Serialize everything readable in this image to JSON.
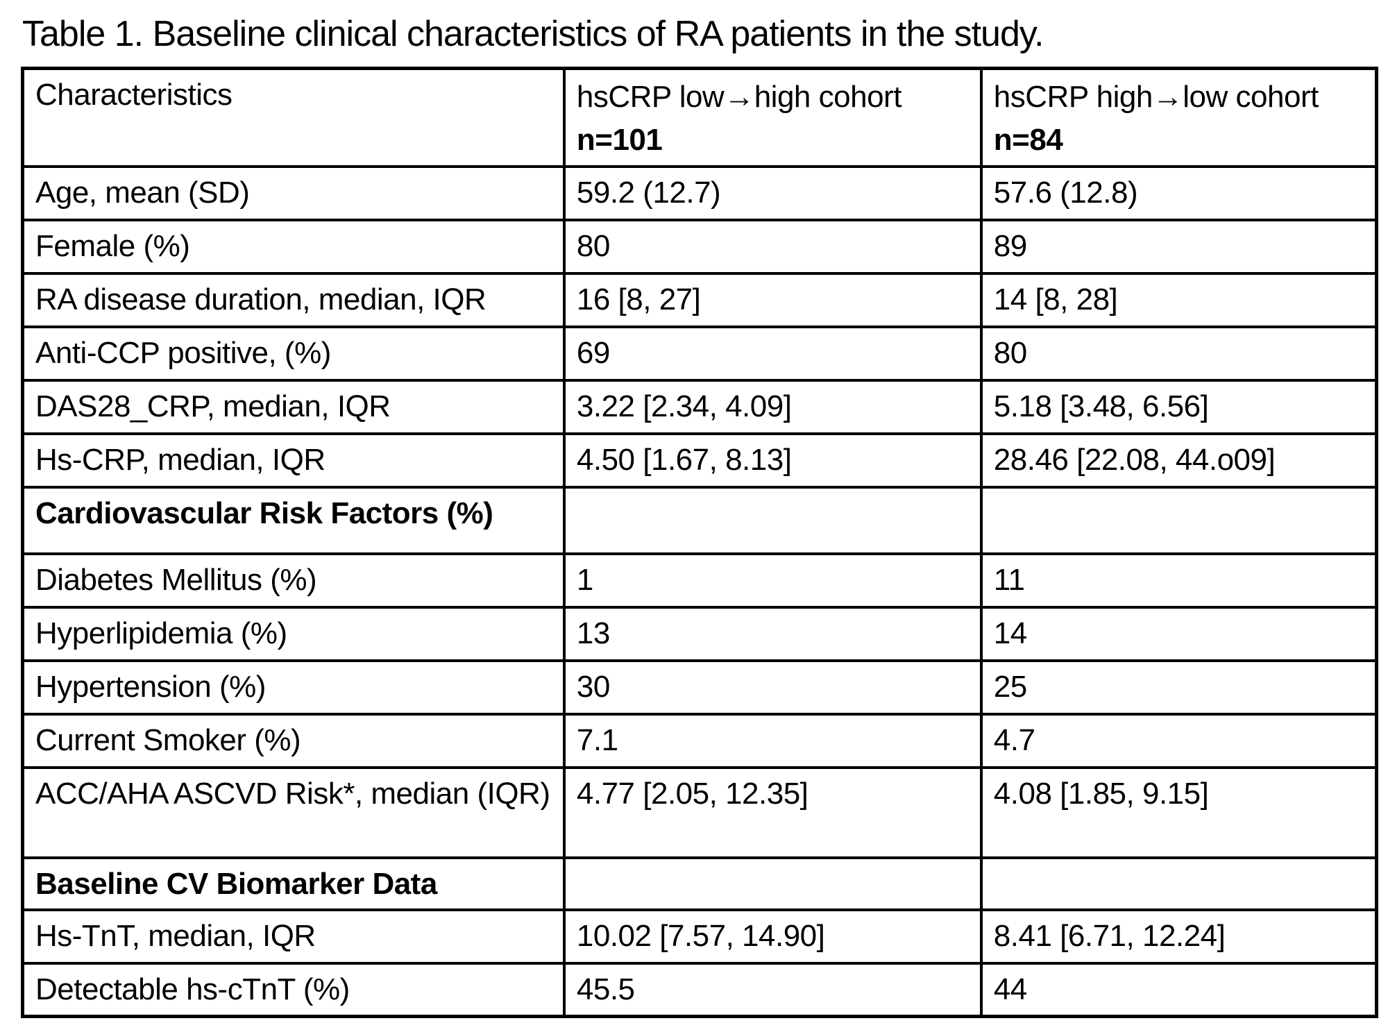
{
  "title": "Table 1.  Baseline clinical characteristics of RA patients in the study.",
  "table": {
    "header": {
      "characteristics": "Characteristics",
      "cohort1_name": "hsCRP low→high cohort",
      "cohort1_n": "n=101",
      "cohort2_name": "hsCRP high→low cohort",
      "cohort2_n": "n=84"
    },
    "rows": [
      {
        "label": "Age, mean (SD)",
        "v1": "59.2 (12.7)",
        "v2": "57.6 (12.8)"
      },
      {
        "label": "Female (%)",
        "v1": "80",
        "v2": "89"
      },
      {
        "label": "RA disease duration, median, IQR",
        "v1": "16 [8, 27]",
        "v2": "14 [8, 28]"
      },
      {
        "label": "Anti-CCP positive, (%)",
        "v1": "69",
        "v2": "80"
      },
      {
        "label": "DAS28_CRP, median, IQR",
        "v1": "3.22 [2.34, 4.09]",
        "v2": "5.18 [3.48, 6.56]"
      },
      {
        "label": "Hs-CRP, median, IQR",
        "v1": "4.50 [1.67, 8.13]",
        "v2": "28.46 [22.08, 44.o09]"
      },
      {
        "label": "Cardiovascular Risk Factors (%)",
        "v1": "",
        "v2": ""
      },
      {
        "label": "Diabetes Mellitus (%)",
        "v1": "1",
        "v2": "11"
      },
      {
        "label": "Hyperlipidemia (%)",
        "v1": "13",
        "v2": "14"
      },
      {
        "label": "Hypertension (%)",
        "v1": "30",
        "v2": "25"
      },
      {
        "label": "Current Smoker (%)",
        "v1": "7.1",
        "v2": "4.7"
      },
      {
        "label": "ACC/AHA ASCVD Risk*, median (IQR)",
        "v1": "4.77 [2.05, 12.35]",
        "v2": "4.08 [1.85, 9.15]"
      },
      {
        "label": "Baseline CV Biomarker Data",
        "v1": "",
        "v2": ""
      },
      {
        "label": "Hs-TnT, median, IQR",
        "v1": "10.02 [7.57, 14.90]",
        "v2": "8.41 [6.71, 12.24]"
      },
      {
        "label": "Detectable hs-cTnT (%)",
        "v1": "45.5",
        "v2": "44"
      }
    ]
  }
}
